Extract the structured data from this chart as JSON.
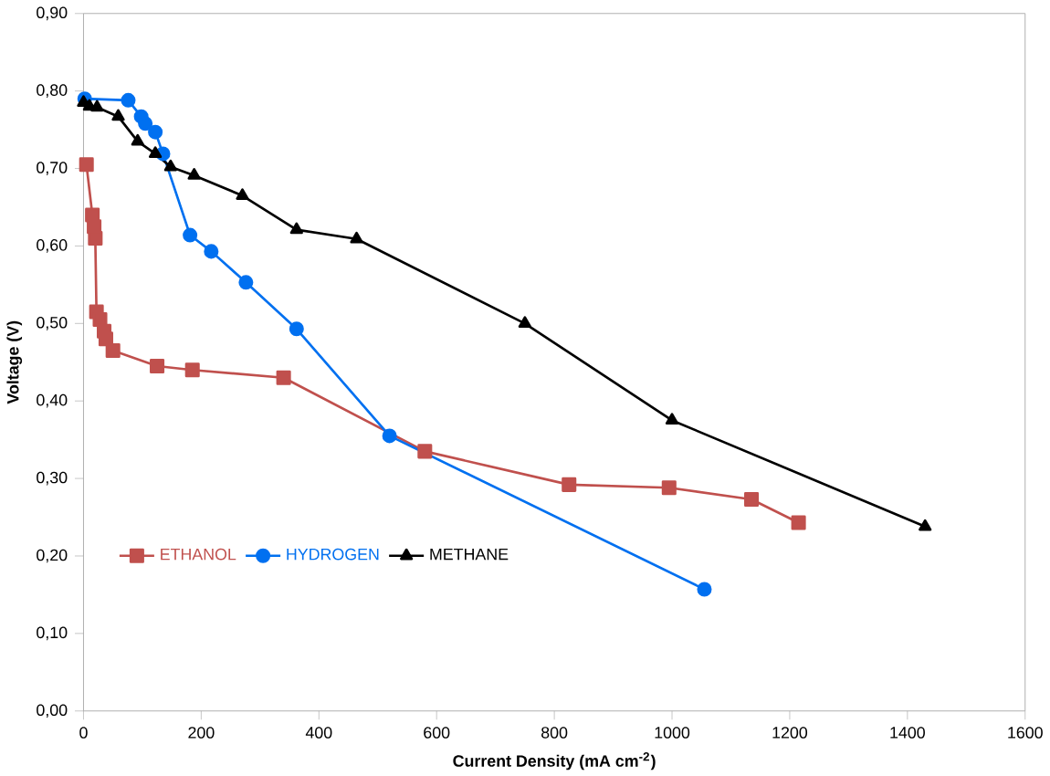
{
  "chart_data": {
    "type": "line",
    "xlabel": "Current Density (mA cm$^{-2}$)",
    "ylabel": "Voltage (V)",
    "xlim": [
      0,
      1600
    ],
    "ylim": [
      0,
      0.9
    ],
    "xticks": [
      0,
      200,
      400,
      600,
      800,
      1000,
      1200,
      1400,
      1600
    ],
    "yticks": [
      {
        "value": 0,
        "label": "0,00"
      },
      {
        "value": 0.1,
        "label": "0,10"
      },
      {
        "value": 0.2,
        "label": "0,20"
      },
      {
        "value": 0.3,
        "label": "0,30"
      },
      {
        "value": 0.4,
        "label": "0,40"
      },
      {
        "value": 0.5,
        "label": "0,50"
      },
      {
        "value": 0.6,
        "label": "0,60"
      },
      {
        "value": 0.7,
        "label": "0,70"
      },
      {
        "value": 0.8,
        "label": "0,80"
      },
      {
        "value": 0.9,
        "label": "0,90"
      }
    ],
    "legend": "bottom left",
    "grid": false,
    "series": [
      {
        "name": "ETHANOL",
        "color": "#c0504d",
        "marker": "square",
        "x": [
          5,
          15,
          18,
          20,
          22,
          28,
          35,
          38,
          50,
          125,
          185,
          340,
          580,
          825,
          995,
          1135,
          1215
        ],
        "values": [
          0.705,
          0.64,
          0.625,
          0.61,
          0.515,
          0.505,
          0.49,
          0.48,
          0.465,
          0.445,
          0.44,
          0.43,
          0.335,
          0.292,
          0.288,
          0.273,
          0.243
        ]
      },
      {
        "name": "HYDROGEN",
        "color": "#0070f0",
        "marker": "circle",
        "x": [
          2,
          76,
          98,
          105,
          122,
          135,
          181,
          217,
          276,
          362,
          520,
          1055
        ],
        "values": [
          0.79,
          0.788,
          0.767,
          0.758,
          0.747,
          0.719,
          0.614,
          0.593,
          0.553,
          0.493,
          0.355,
          0.157
        ]
      },
      {
        "name": "METHANE",
        "color": "#000000",
        "marker": "triangle",
        "x": [
          0,
          10,
          23,
          59,
          92,
          122,
          148,
          188,
          270,
          362,
          464,
          750,
          1000,
          1430
        ],
        "values": [
          0.785,
          0.78,
          0.779,
          0.767,
          0.735,
          0.719,
          0.702,
          0.691,
          0.665,
          0.621,
          0.609,
          0.5,
          0.375,
          0.238
        ]
      }
    ]
  }
}
